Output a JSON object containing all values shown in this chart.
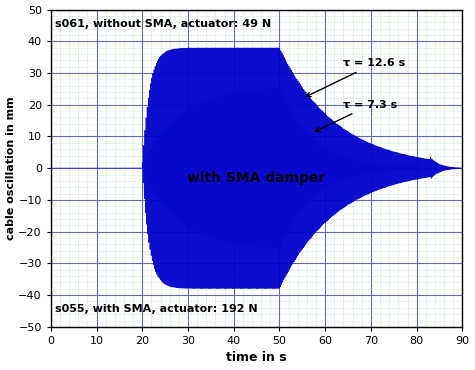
{
  "title_top": "s061, without SMA, actuator: 49 N",
  "title_bottom": "s055, with SMA, actuator: 192 N",
  "xlabel": "time in s",
  "ylabel": "cable oscillation in mm",
  "xlim": [
    0,
    90
  ],
  "ylim": [
    -50,
    50
  ],
  "xticks": [
    0,
    10,
    20,
    30,
    40,
    50,
    60,
    70,
    80,
    90
  ],
  "yticks": [
    -50,
    -40,
    -30,
    -20,
    -10,
    0,
    10,
    20,
    30,
    40,
    50
  ],
  "major_grid_color": "#6666bb",
  "minor_grid_color": "#99cc99",
  "bg_color": "#ffffff",
  "blue_color": "#0000cc",
  "white_color": "#aaaaee",
  "annotation_tau1": "τ = 12.6 s",
  "annotation_tau2": "τ = 7.3 s",
  "annotation_sma": "with SMA damper",
  "freq": 4.0,
  "t_start": 20.0,
  "t_peak_start": 20.5,
  "t_peak_end": 50.0,
  "t_end": 83.0,
  "peak_blue": 38.0,
  "peak_white": 26.0,
  "tau_blue": 12.6,
  "tau_white": 7.3,
  "rise_tau_blue": 1.5,
  "rise_tau_white": 8.0
}
